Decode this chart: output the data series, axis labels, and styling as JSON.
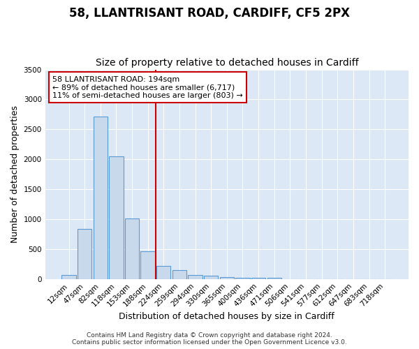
{
  "title": "58, LLANTRISANT ROAD, CARDIFF, CF5 2PX",
  "subtitle": "Size of property relative to detached houses in Cardiff",
  "xlabel": "Distribution of detached houses by size in Cardiff",
  "ylabel": "Number of detached properties",
  "bar_labels": [
    "12sqm",
    "47sqm",
    "82sqm",
    "118sqm",
    "153sqm",
    "188sqm",
    "224sqm",
    "259sqm",
    "294sqm",
    "330sqm",
    "365sqm",
    "400sqm",
    "436sqm",
    "471sqm",
    "506sqm",
    "541sqm",
    "577sqm",
    "612sqm",
    "647sqm",
    "683sqm",
    "718sqm"
  ],
  "bar_values": [
    65,
    840,
    2710,
    2045,
    1010,
    460,
    220,
    150,
    65,
    50,
    30,
    25,
    20,
    25,
    0,
    0,
    0,
    0,
    0,
    0,
    0
  ],
  "bar_color": "#c9d9ec",
  "bar_edge_color": "#5b9bd5",
  "vline_x": 5.5,
  "vline_color": "#cc0000",
  "annotation_text": "58 LLANTRISANT ROAD: 194sqm\n← 89% of detached houses are smaller (6,717)\n11% of semi-detached houses are larger (803) →",
  "annotation_box_color": "#ffffff",
  "annotation_box_edge": "#cc0000",
  "ylim": [
    0,
    3500
  ],
  "yticks": [
    0,
    500,
    1000,
    1500,
    2000,
    2500,
    3000,
    3500
  ],
  "footer": "Contains HM Land Registry data © Crown copyright and database right 2024.\nContains public sector information licensed under the Open Government Licence v3.0.",
  "fig_bg_color": "#ffffff",
  "plot_bg_color": "#dce8f5",
  "title_fontsize": 12,
  "subtitle_fontsize": 10,
  "tick_fontsize": 7.5,
  "ylabel_fontsize": 9,
  "xlabel_fontsize": 9,
  "footer_fontsize": 6.5
}
